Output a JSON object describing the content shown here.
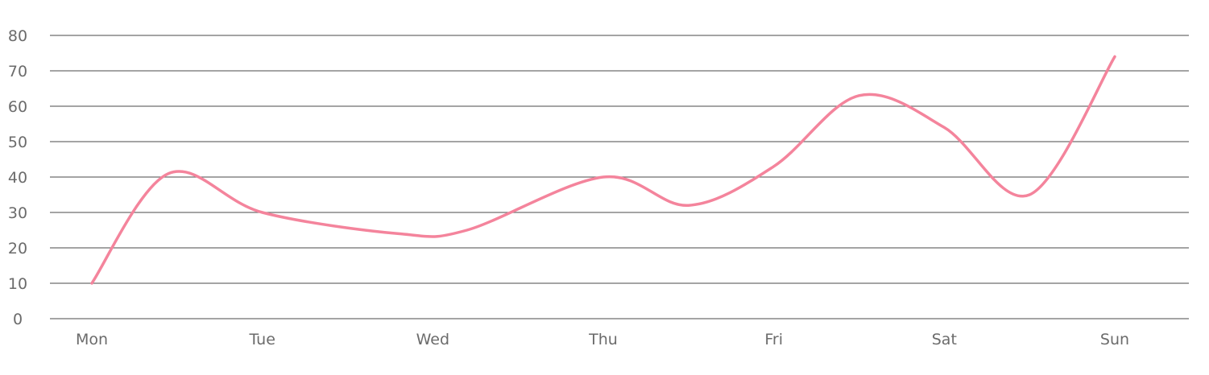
{
  "chart_data": {
    "type": "line",
    "smooth": true,
    "title": "",
    "xlabel": "",
    "ylabel": "",
    "categories": [
      "Mon",
      "Tue",
      "Wed",
      "Thu",
      "Fri",
      "Sat",
      "Sun"
    ],
    "y_ticks": [
      "0",
      "10",
      "20",
      "30",
      "40",
      "50",
      "60",
      "70",
      "80"
    ],
    "ylim": [
      0,
      80
    ],
    "grid": true,
    "legend": "none",
    "series": [
      {
        "color": "#f4849c",
        "x": [
          0,
          0.45,
          1,
          1.8,
          2.2,
          3,
          3.5,
          4,
          4.5,
          5,
          5.5,
          6
        ],
        "values": [
          10,
          41,
          30,
          24,
          25,
          40,
          32,
          43,
          63,
          54,
          35,
          74
        ]
      }
    ]
  }
}
